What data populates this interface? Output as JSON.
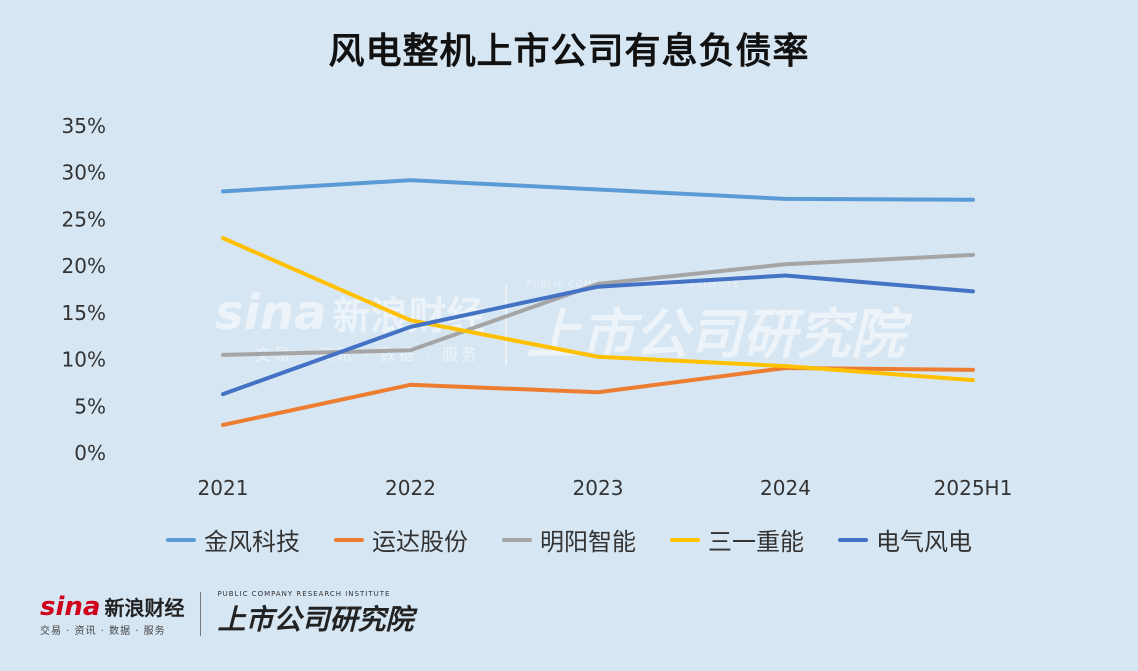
{
  "chart_data": {
    "type": "line",
    "title": "风电整机上市公司有息负债率",
    "categories": [
      "2021",
      "2022",
      "2023",
      "2024",
      "2025H1"
    ],
    "yticks": [
      "0%",
      "5%",
      "10%",
      "15%",
      "20%",
      "25%",
      "30%",
      "35%"
    ],
    "ylim": [
      0,
      35
    ],
    "grid": false,
    "legend_position": "bottom",
    "series": [
      {
        "name": "金风科技",
        "color": "#5b9bd5",
        "values": [
          28.0,
          29.2,
          28.2,
          27.2,
          27.1
        ]
      },
      {
        "name": "运达股份",
        "color": "#ed7d31",
        "values": [
          3.0,
          7.3,
          6.5,
          9.1,
          8.9
        ]
      },
      {
        "name": "明阳智能",
        "color": "#a5a5a5",
        "values": [
          10.5,
          11.0,
          18.1,
          20.2,
          21.2
        ]
      },
      {
        "name": "三一重能",
        "color": "#ffc000",
        "values": [
          23.0,
          14.2,
          10.3,
          9.3,
          7.8
        ]
      },
      {
        "name": "电气风电",
        "color": "#4472c4",
        "values": [
          6.3,
          13.5,
          17.8,
          19.0,
          17.3
        ]
      }
    ]
  },
  "watermark": {
    "sina_mark": "sina",
    "sina_name": "新浪财经",
    "sina_sub": "交易 · 资讯 · 数据 · 服务",
    "institute_en": "PUBLIC COMPANY RESEARCH INSTITUTE",
    "institute_cn": "上市公司研究院"
  },
  "footer": {
    "sina_mark": "sina",
    "sina_name": "新浪财经",
    "sina_sub": "交易 · 资讯 · 数据 · 服务",
    "institute_en": "PUBLIC COMPANY RESEARCH INSTITUTE",
    "institute_cn": "上市公司研究院"
  }
}
